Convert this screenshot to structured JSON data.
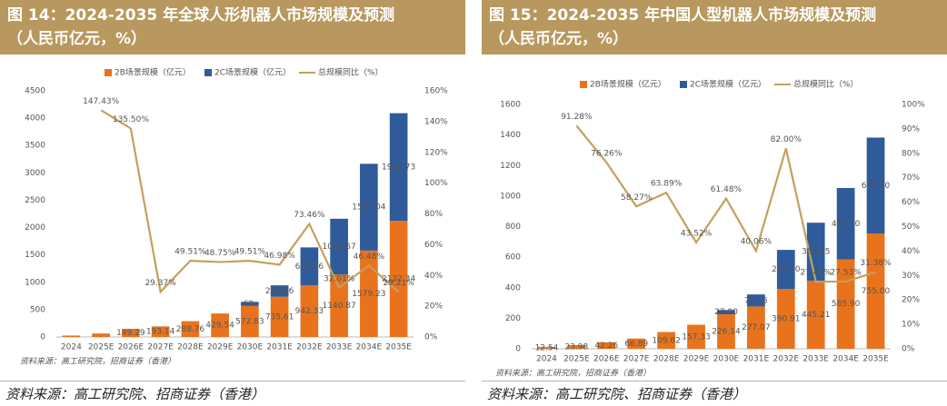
{
  "chart_data": [
    {
      "type": "bar",
      "title": "图 14：2024-2035 年全球人形机器人市场规模及预测",
      "subtitle": "（人民币亿元，%）",
      "categories": [
        "2024",
        "2025E",
        "2026E",
        "2027E",
        "2028E",
        "2029E",
        "2030E",
        "2031E",
        "2032E",
        "2033E",
        "2034E",
        "2035E"
      ],
      "series": [
        {
          "name": "2B场景规模（亿元）",
          "type": "bar",
          "color": "#e8731c",
          "values": [
            25.67,
            63.39,
            149.29,
            193.14,
            288.76,
            429.54,
            572.83,
            735.61,
            942.33,
            1140.87,
            1579.23,
            2122.34
          ],
          "value_labels": [
            null,
            null,
            "149.29",
            "193.14",
            "288.76",
            "429.54",
            "572.83",
            "735.61",
            "942.33",
            "1140.87",
            "1579.23",
            "2122.34"
          ]
        },
        {
          "name": "2C场景规模（亿元）",
          "type": "bar",
          "color": "#2f5b9a",
          "values": [
            null,
            null,
            null,
            null,
            null,
            null,
            69,
            208.36,
            695.06,
            1020.67,
            1587.04,
            1968.73
          ],
          "value_labels": [
            null,
            null,
            null,
            null,
            null,
            null,
            "69.",
            "208.36",
            "695.06",
            "1020.67",
            "1587.04",
            "1968.73"
          ]
        },
        {
          "name": "总规模同比（%）",
          "type": "line",
          "axis": "y2",
          "color": "#c4a05e",
          "values": [
            null,
            147.43,
            135.5,
            29.37,
            49.51,
            48.75,
            49.51,
            46.98,
            73.46,
            32.01,
            46.48,
            29.21
          ],
          "value_labels": [
            null,
            "147.43%",
            "135.50%",
            "29.37%",
            "49.51%",
            "48.75%",
            "49.51%",
            "46.98%",
            "73.46%",
            "32.01%",
            "46.48%",
            "29.21%"
          ]
        }
      ],
      "ylim": [
        0,
        4500
      ],
      "yticks": [
        0,
        500,
        1000,
        1500,
        2000,
        2500,
        3000,
        3500,
        4000,
        4500
      ],
      "y2lim": [
        0,
        160
      ],
      "y2ticks": [
        {
          "value": 0,
          "label": "0%"
        },
        {
          "value": 20,
          "label": "20%"
        },
        {
          "value": 40,
          "label": "40%"
        },
        {
          "value": 60,
          "label": "60%"
        },
        {
          "value": 80,
          "label": "80%"
        },
        {
          "value": 100,
          "label": "100%"
        },
        {
          "value": 120,
          "label": "120%"
        },
        {
          "value": 140,
          "label": "140%"
        },
        {
          "value": 160,
          "label": "160%"
        }
      ],
      "source": "资料来源：高工研究院，招商证券（香港）",
      "footnote": "资料来源：高工研究院、招商证券（香港）"
    },
    {
      "type": "bar",
      "title": "图 15：2024-2035 年中国人型机器人市场规模及预测",
      "subtitle": "（人民币亿元，%）",
      "categories": [
        "2024",
        "2025E",
        "2026E",
        "2027E",
        "2028E",
        "2029E",
        "2030E",
        "2031E",
        "2032E",
        "2033E",
        "2034E",
        "2035E"
      ],
      "series": [
        {
          "name": "2B场景规模（亿元）",
          "type": "bar",
          "color": "#e8731c",
          "values": [
            12.54,
            23.98,
            42.26,
            66.89,
            109.62,
            157.33,
            226.14,
            277.07,
            390.91,
            445.21,
            585.9,
            755.0
          ],
          "value_labels": [
            "12.54",
            "23.98",
            "42.26",
            "66.89",
            "109.62",
            "157.33",
            "226.14",
            "277.07",
            "390.91",
            "445.21",
            "585.90",
            "755.00"
          ]
        },
        {
          "name": "2C场景规模（亿元）",
          "type": "bar",
          "color": "#2f5b9a",
          "values": [
            null,
            null,
            null,
            null,
            null,
            null,
            27.9,
            78.75,
            256.7,
            380.25,
            466.8,
            628.0
          ],
          "value_labels": [
            null,
            null,
            null,
            null,
            null,
            null,
            "27.90",
            "78.75",
            "256.70",
            "380.25",
            "466.80",
            "628.00"
          ]
        },
        {
          "name": "总规模同比（%）",
          "type": "line",
          "axis": "y2",
          "color": "#c4a05e",
          "values": [
            null,
            91.28,
            76.26,
            58.27,
            63.89,
            43.52,
            61.48,
            40.06,
            82.0,
            27.46,
            27.53,
            31.38
          ],
          "value_labels": [
            null,
            "91.28%",
            "76.26%",
            "58.27%",
            "63.89%",
            "43.52%",
            "61.48%",
            "40.06%",
            "82.00%",
            "27.46%",
            "27.53%",
            "31.38%"
          ]
        }
      ],
      "ylim": [
        0,
        1600
      ],
      "yticks": [
        0,
        200,
        400,
        600,
        800,
        1000,
        1200,
        1400,
        1600
      ],
      "y2lim": [
        0,
        100
      ],
      "y2ticks": [
        {
          "value": 0,
          "label": "0%"
        },
        {
          "value": 10,
          "label": "10%"
        },
        {
          "value": 20,
          "label": "20%"
        },
        {
          "value": 30,
          "label": "30%"
        },
        {
          "value": 40,
          "label": "40%"
        },
        {
          "value": 50,
          "label": "50%"
        },
        {
          "value": 60,
          "label": "60%"
        },
        {
          "value": 70,
          "label": "70%"
        },
        {
          "value": 80,
          "label": "80%"
        },
        {
          "value": 90,
          "label": "90%"
        },
        {
          "value": 100,
          "label": "100%"
        }
      ],
      "source": "资料来源：高工研究院，招商证券（香港）",
      "footnote": "资料来源：高工研究院、招商证券（香港）"
    }
  ]
}
